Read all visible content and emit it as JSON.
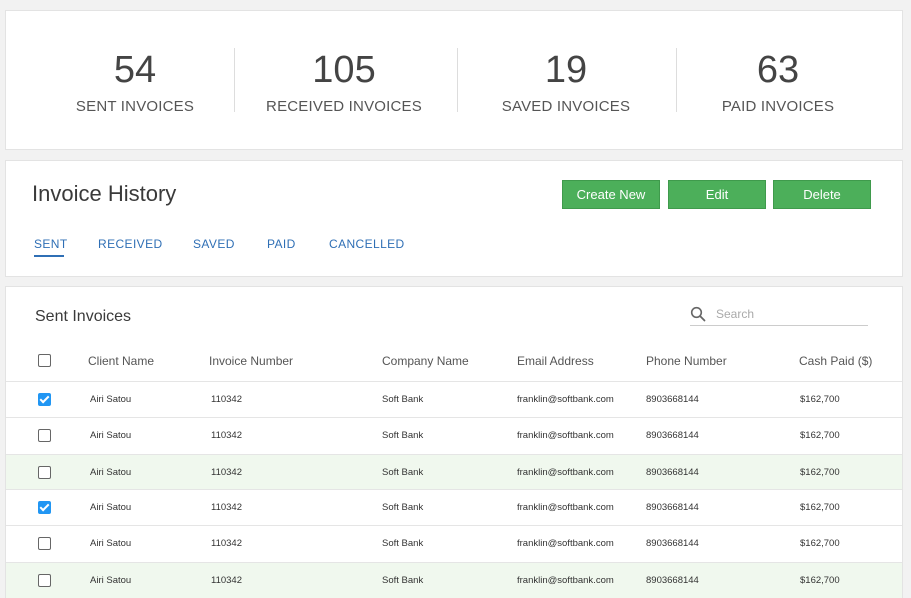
{
  "stats": [
    {
      "value": "54",
      "label": "SENT INVOICES"
    },
    {
      "value": "105",
      "label": "RECEIVED INVOICES"
    },
    {
      "value": "19",
      "label": "SAVED INVOICES"
    },
    {
      "value": "63",
      "label": "PAID INVOICES"
    }
  ],
  "history": {
    "title": "Invoice History",
    "buttons": {
      "create": "Create New",
      "edit": "Edit",
      "delete": "Delete"
    },
    "tabs": [
      "SENT",
      "RECEIVED",
      "SAVED",
      "PAID",
      "CANCELLED"
    ],
    "active_tab": "SENT"
  },
  "table": {
    "title": "Sent Invoices",
    "search": {
      "placeholder": "Search",
      "value": ""
    },
    "columns": [
      "Client Name",
      "Invoice Number",
      "Company Name",
      "Email Address",
      "Phone Number",
      "Cash Paid ($)"
    ],
    "rows": [
      {
        "checked": true,
        "highlight": false,
        "client": "Airi Satou",
        "invoice": "110342",
        "company": "Soft Bank",
        "email": "franklin@softbank.com",
        "phone": "8903668144",
        "cash": "$162,700"
      },
      {
        "checked": false,
        "highlight": false,
        "client": "Airi Satou",
        "invoice": "110342",
        "company": "Soft Bank",
        "email": "franklin@softbank.com",
        "phone": "8903668144",
        "cash": "$162,700"
      },
      {
        "checked": false,
        "highlight": true,
        "client": "Airi Satou",
        "invoice": "110342",
        "company": "Soft Bank",
        "email": "franklin@softbank.com",
        "phone": "8903668144",
        "cash": "$162,700"
      },
      {
        "checked": true,
        "highlight": false,
        "client": "Airi Satou",
        "invoice": "110342",
        "company": "Soft Bank",
        "email": "franklin@softbank.com",
        "phone": "8903668144",
        "cash": "$162,700"
      },
      {
        "checked": false,
        "highlight": false,
        "client": "Airi Satou",
        "invoice": "110342",
        "company": "Soft Bank",
        "email": "franklin@softbank.com",
        "phone": "8903668144",
        "cash": "$162,700"
      },
      {
        "checked": false,
        "highlight": true,
        "client": "Airi Satou",
        "invoice": "110342",
        "company": "Soft Bank",
        "email": "franklin@softbank.com",
        "phone": "8903668144",
        "cash": "$162,700"
      }
    ]
  },
  "colors": {
    "button_green": "#4caf5a",
    "tab_blue": "#2f6fb5",
    "checkbox_blue": "#2196f3",
    "row_highlight": "#f0f8ee"
  }
}
